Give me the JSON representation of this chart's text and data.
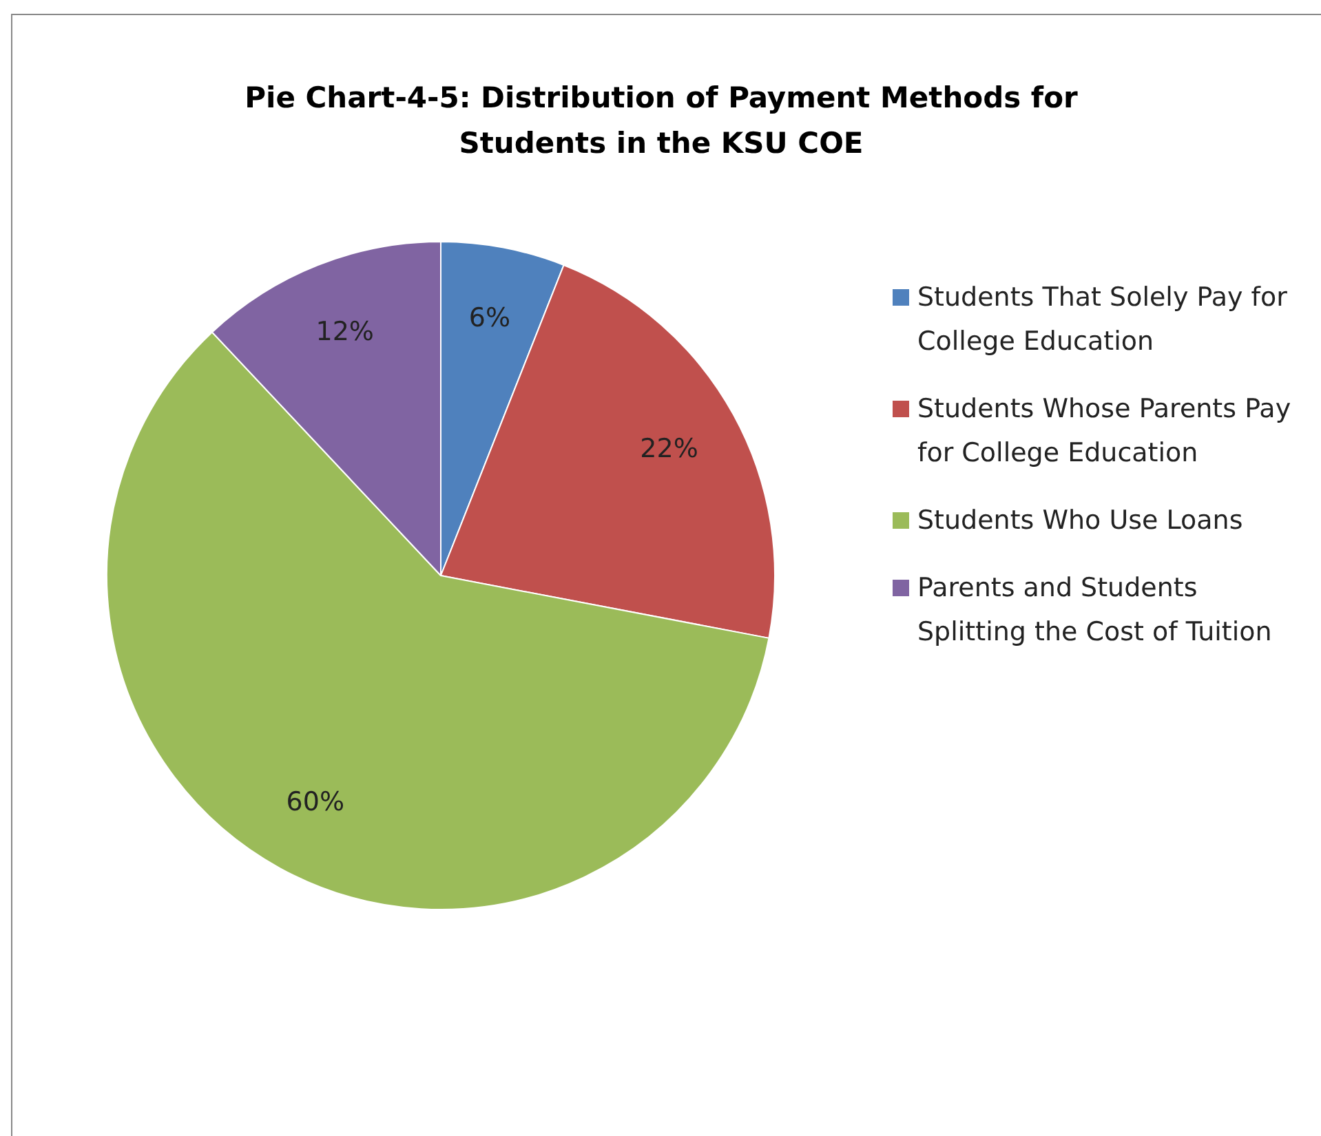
{
  "chart_data": {
    "type": "pie",
    "title": "Pie Chart-4-5: Distribution of Payment Methods for Students in the KSU COE",
    "categories": [
      "Students That Solely Pay for College Education",
      "Students Whose Parents Pay for College Education",
      "Students Who Use Loans",
      "Parents and Students Splitting the Cost of Tuition"
    ],
    "values": [
      6,
      22,
      60,
      12
    ],
    "colors": [
      "#4f81bd",
      "#c0504d",
      "#9bbb59",
      "#8064a2"
    ],
    "value_labels": [
      "6%",
      "22%",
      "60%",
      "12%"
    ],
    "legend": "right"
  }
}
